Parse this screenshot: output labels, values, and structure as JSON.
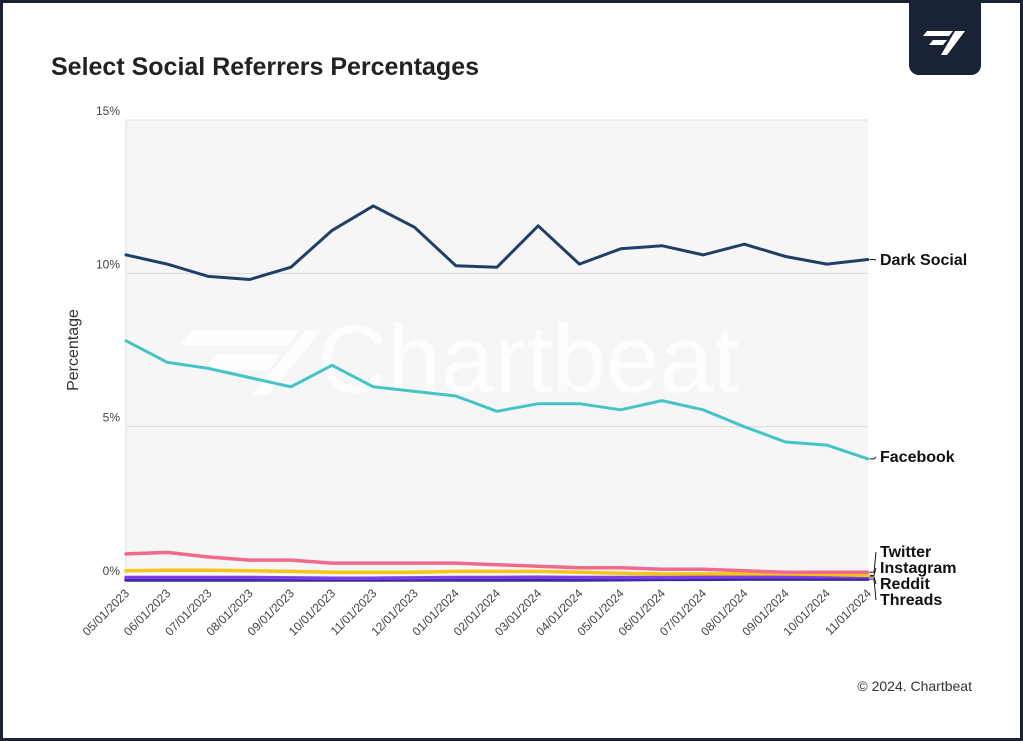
{
  "title": "Select Social Referrers Percentages",
  "footer": "© 2024. Chartbeat",
  "watermark": "Chartbeat",
  "logo_icon": "chartbeat-logo-icon",
  "chart_data": {
    "type": "line",
    "title": "Select Social Referrers Percentages",
    "ylabel": "Percentage",
    "xlabel": "",
    "ylim": [
      0,
      15
    ],
    "yticks": [
      0,
      5,
      10,
      15
    ],
    "ytick_labels": [
      "0%",
      "5%",
      "10%",
      "15%"
    ],
    "grid": true,
    "legend": "inline-right",
    "x": [
      "05/01/2023",
      "06/01/2023",
      "07/01/2023",
      "08/01/2023",
      "09/01/2023",
      "10/01/2023",
      "11/01/2023",
      "12/01/2023",
      "01/01/2024",
      "02/01/2024",
      "03/01/2024",
      "04/01/2024",
      "05/01/2024",
      "06/01/2024",
      "07/01/2024",
      "08/01/2024",
      "09/01/2024",
      "10/01/2024",
      "11/01/2024"
    ],
    "series": [
      {
        "name": "Dark Social",
        "color": "#1f3f66",
        "values": [
          10.6,
          10.3,
          9.9,
          9.8,
          10.2,
          11.4,
          12.2,
          11.5,
          10.25,
          10.2,
          11.55,
          10.3,
          10.8,
          10.9,
          10.6,
          10.95,
          10.55,
          10.3,
          10.45
        ]
      },
      {
        "name": "Facebook",
        "color": "#45c4c6",
        "values": [
          7.8,
          7.1,
          6.9,
          6.6,
          6.3,
          7.0,
          6.3,
          6.15,
          6.0,
          5.5,
          5.75,
          5.75,
          5.55,
          5.85,
          5.55,
          5.0,
          4.5,
          4.4,
          3.95
        ]
      },
      {
        "name": "Twitter",
        "color": "#f06a8e",
        "values": [
          0.85,
          0.9,
          0.75,
          0.65,
          0.65,
          0.55,
          0.55,
          0.55,
          0.55,
          0.5,
          0.45,
          0.4,
          0.4,
          0.35,
          0.35,
          0.3,
          0.25,
          0.25,
          0.25
        ]
      },
      {
        "name": "Instagram",
        "color": "#f5c518",
        "values": [
          0.3,
          0.32,
          0.32,
          0.3,
          0.28,
          0.25,
          0.25,
          0.25,
          0.28,
          0.28,
          0.28,
          0.25,
          0.22,
          0.2,
          0.2,
          0.2,
          0.2,
          0.18,
          0.15
        ]
      },
      {
        "name": "Reddit",
        "color": "#7b3fe4",
        "values": [
          0.08,
          0.08,
          0.08,
          0.08,
          0.07,
          0.06,
          0.06,
          0.07,
          0.08,
          0.08,
          0.09,
          0.08,
          0.08,
          0.08,
          0.09,
          0.1,
          0.1,
          0.1,
          0.1
        ]
      },
      {
        "name": "Threads",
        "color": "#3b2a9e",
        "values": [
          0.0,
          0.0,
          0.0,
          0.0,
          0.0,
          0.0,
          0.0,
          0.0,
          0.0,
          0.0,
          0.0,
          0.0,
          0.01,
          0.02,
          0.02,
          0.03,
          0.03,
          0.03,
          0.03
        ]
      }
    ]
  }
}
